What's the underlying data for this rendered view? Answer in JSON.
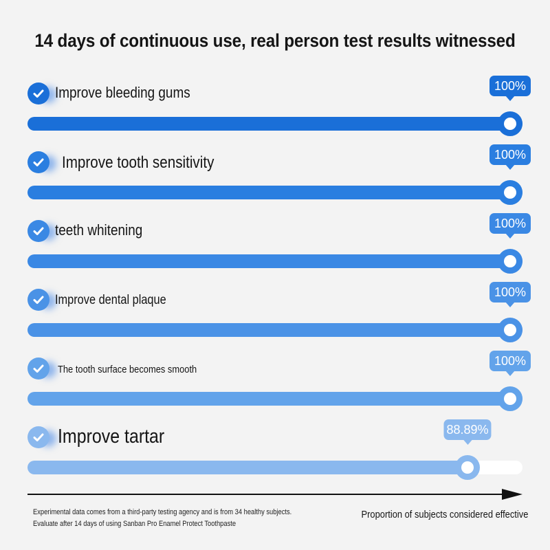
{
  "title": "14 days of continuous use, real person test results witnessed",
  "chart_data": {
    "type": "bar",
    "orientation": "horizontal",
    "title": "14 days of continuous use, real person test results witnessed",
    "xlabel": "Proportion of subjects considered effective",
    "xlim": [
      0,
      100
    ],
    "unit": "%",
    "categories": [
      "Improve bleeding gums",
      "Improve tooth sensitivity",
      "teeth whitening",
      "Improve dental plaque",
      "The tooth surface becomes smooth",
      "Improve tartar"
    ],
    "values": [
      100,
      100,
      100,
      100,
      100,
      88.89
    ],
    "value_labels": [
      "100%",
      "100%",
      "100%",
      "100%",
      "100%",
      "88.89%"
    ],
    "bar_colors": [
      "#1a6fd8",
      "#2a7ee0",
      "#3a88e4",
      "#4a92e6",
      "#62a3ea",
      "#8ab8ee"
    ],
    "badge_colors": [
      "#1a6fd8",
      "#2a7ee0",
      "#3a88e4",
      "#4a92e6",
      "#62a3ea",
      "#8ab8ee"
    ],
    "track_color": "#ffffff",
    "grid": false,
    "legend": "none"
  },
  "check_icon_color": "#3a88e4",
  "axis_caption": "Proportion of subjects considered effective",
  "notes": [
    "Experimental data comes from a third-party testing agency and is from 34 healthy subjects.",
    "Evaluate after 14 days of using Sanban Pro Enamel Protect Toothpaste"
  ]
}
